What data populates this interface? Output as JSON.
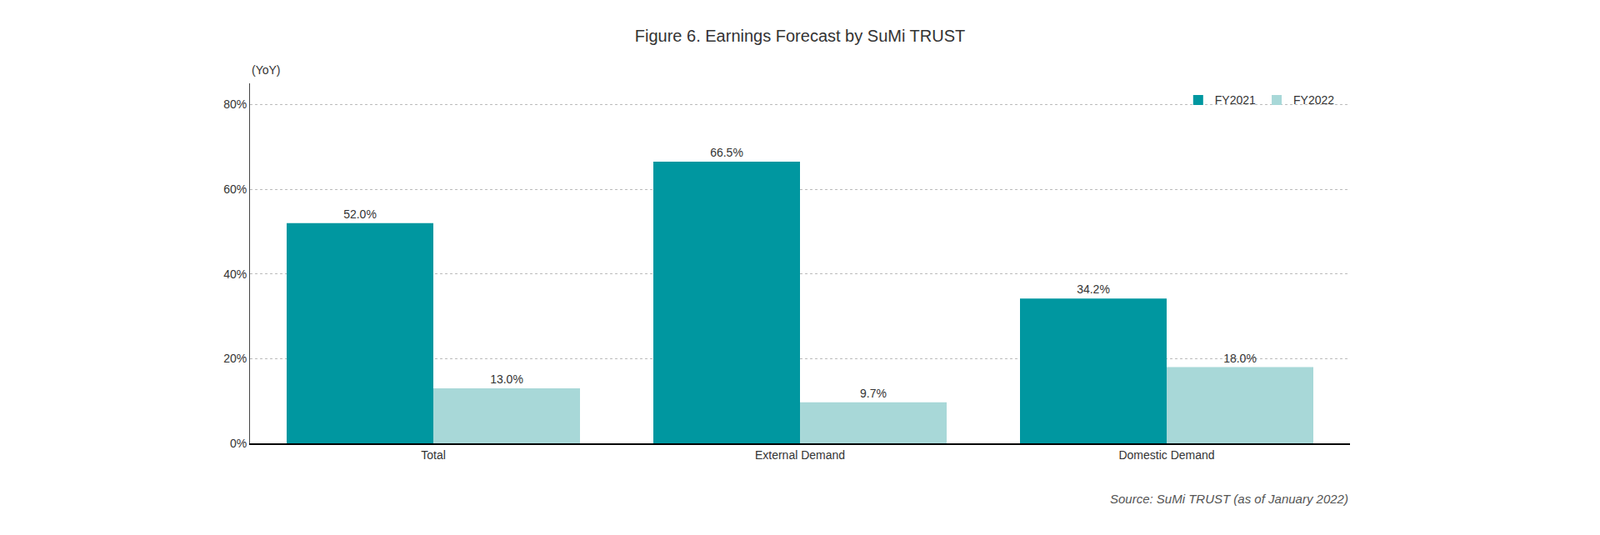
{
  "chart_data": {
    "type": "bar",
    "title": "Figure 6. Earnings Forecast by SuMi TRUST",
    "ylabel": "(YoY)",
    "source": "Source: SuMi TRUST (as of January 2022)",
    "categories": [
      "Total",
      "External Demand",
      "Domestic Demand"
    ],
    "series": [
      {
        "name": "FY2021",
        "color": "#0097a0",
        "values": [
          52.0,
          66.5,
          34.2
        ],
        "value_labels": [
          "52.0%",
          "66.5%",
          "34.2%"
        ]
      },
      {
        "name": "FY2022",
        "color": "#a8d8d8",
        "values": [
          13.0,
          9.7,
          18.0
        ],
        "value_labels": [
          "13.0%",
          "9.7%",
          "18.0%"
        ]
      }
    ],
    "ylim": [
      0,
      85
    ],
    "yticks": [
      {
        "value": 0,
        "label": "0%"
      },
      {
        "value": 20,
        "label": "20%"
      },
      {
        "value": 40,
        "label": "40%"
      },
      {
        "value": 60,
        "label": "60%"
      },
      {
        "value": 80,
        "label": "80%"
      }
    ],
    "grid": true,
    "legend": "upper right",
    "data_labels": true
  }
}
